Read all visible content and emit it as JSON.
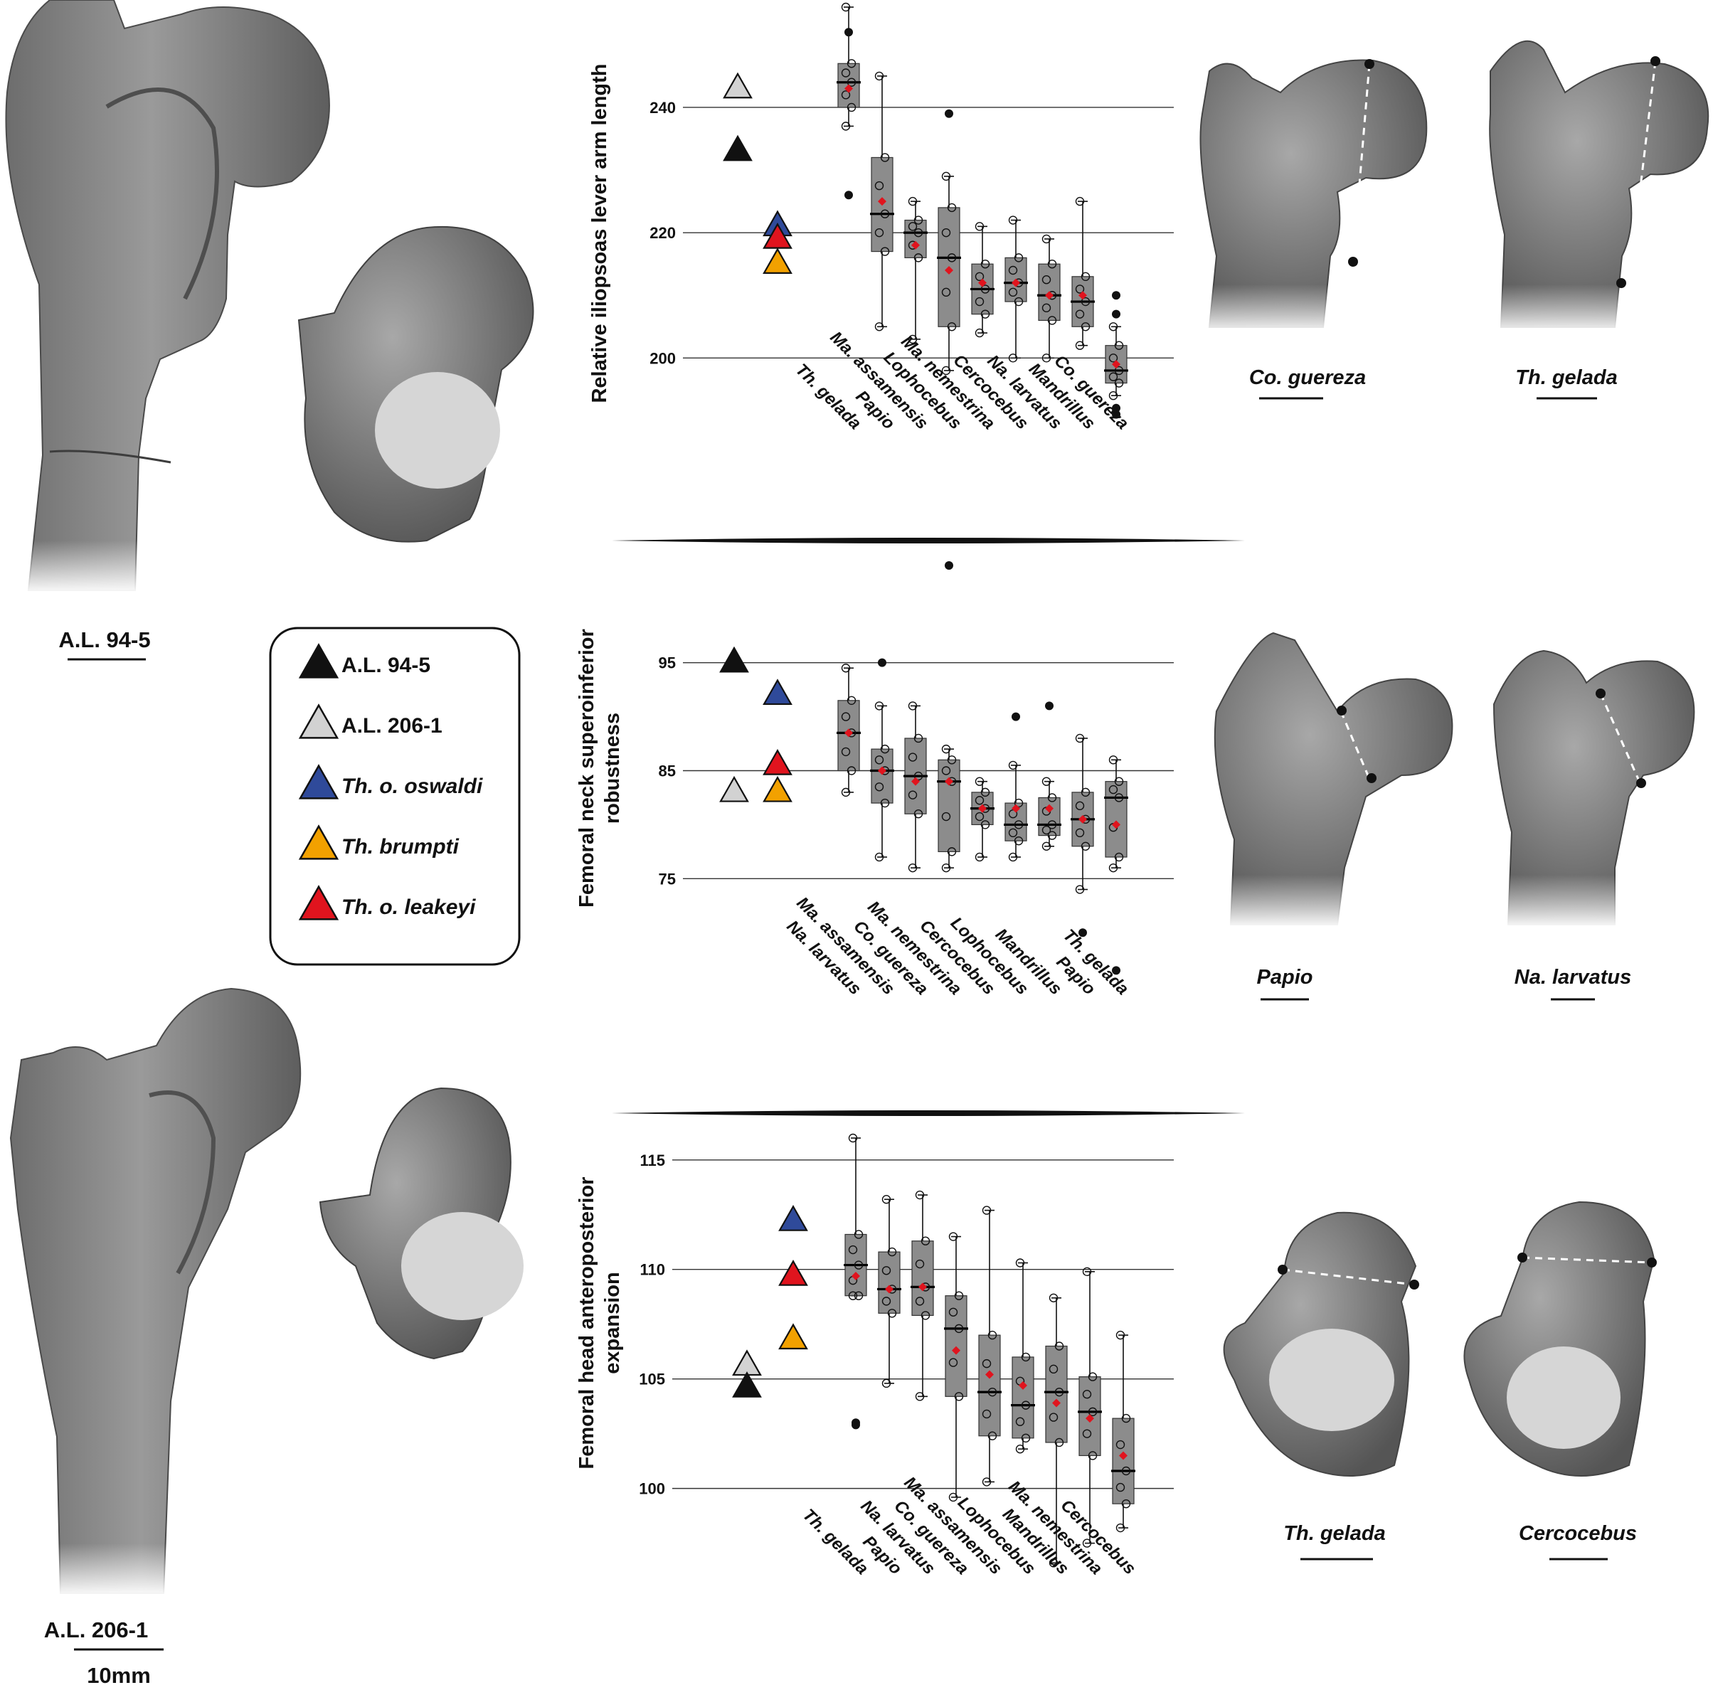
{
  "colors": {
    "al945": "#111111",
    "al2061": "#d2d2d2",
    "oswaldi": "#2f4a9a",
    "brumpti": "#f2a100",
    "leakeyi": "#e0141e",
    "box": "#8c8c8c",
    "mean": "#e0141e",
    "bone": "#8a8a8a",
    "bone_dark": "#5a5a5a",
    "section": "#d6d6d6"
  },
  "specimens": {
    "al945": "A.L. 94-5",
    "al2061": "A.L. 206-1",
    "scale": "10mm"
  },
  "legend": [
    {
      "label": "A.L. 94-5",
      "color": "#111111",
      "italic": false
    },
    {
      "label": "A.L. 206-1",
      "color": "#d2d2d2",
      "italic": false
    },
    {
      "label": "Th. o. oswaldi",
      "color": "#2f4a9a",
      "italic": true
    },
    {
      "label": "Th. brumpti",
      "color": "#f2a100",
      "italic": true
    },
    {
      "label": "Th. o. leakeyi",
      "color": "#e0141e",
      "italic": true
    }
  ],
  "bone_labels": {
    "p1_left": "Co. guereza",
    "p1_right": "Th. gelada",
    "p2_left": "Papio",
    "p2_right": "Na. larvatus",
    "p3_left": "Th. gelada",
    "p3_right": "Cercocebus"
  },
  "chart_data": [
    {
      "type": "box",
      "ylabel": "Relative iliopsoas lever arm length",
      "ylim": [
        193,
        256
      ],
      "yticks": [
        200,
        220,
        240
      ],
      "grid": true,
      "categories": [
        "Th. gelada",
        "Papio",
        "Ma. assamensis",
        "Lophocebus",
        "Ma. nemestrina",
        "Cercocebus",
        "Na. larvatus",
        "Mandrillus",
        "Co. guereza"
      ],
      "boxes": [
        {
          "q1": 240,
          "median": 244,
          "q3": 247,
          "whisker_low": 237,
          "whisker_high": 256,
          "mean": 243,
          "outliers": [
            252,
            226
          ]
        },
        {
          "q1": 217,
          "median": 223,
          "q3": 232,
          "whisker_low": 205,
          "whisker_high": 245,
          "mean": 225,
          "outliers": []
        },
        {
          "q1": 216,
          "median": 220,
          "q3": 222,
          "whisker_low": 203,
          "whisker_high": 225,
          "mean": 218,
          "outliers": []
        },
        {
          "q1": 205,
          "median": 216,
          "q3": 224,
          "whisker_low": 198,
          "whisker_high": 229,
          "mean": 214,
          "outliers": [
            239
          ]
        },
        {
          "q1": 207,
          "median": 211,
          "q3": 215,
          "whisker_low": 204,
          "whisker_high": 221,
          "mean": 212,
          "outliers": []
        },
        {
          "q1": 209,
          "median": 212,
          "q3": 216,
          "whisker_low": 200,
          "whisker_high": 222,
          "mean": 212,
          "outliers": []
        },
        {
          "q1": 206,
          "median": 210,
          "q3": 215,
          "whisker_low": 200,
          "whisker_high": 219,
          "mean": 210,
          "outliers": []
        },
        {
          "q1": 205,
          "median": 209,
          "q3": 213,
          "whisker_low": 202,
          "whisker_high": 225,
          "mean": 210,
          "outliers": []
        },
        {
          "q1": 196,
          "median": 198,
          "q3": 202,
          "whisker_low": 194,
          "whisker_high": 205,
          "mean": 199,
          "outliers": [
            210,
            207,
            192,
            191
          ]
        }
      ],
      "fossils": [
        {
          "group": "A.L. 206-1",
          "value": 243,
          "col": 0
        },
        {
          "group": "A.L. 94-5",
          "value": 233,
          "col": 0
        },
        {
          "group": "Th. o. oswaldi",
          "value": 221,
          "col": 1
        },
        {
          "group": "Th. o. leakeyi",
          "value": 219,
          "col": 1
        },
        {
          "group": "Th. brumpti",
          "value": 215,
          "col": 1
        }
      ]
    },
    {
      "type": "box",
      "ylabel": [
        "Femoral neck superoinferior",
        "robustness"
      ],
      "ylim": [
        66,
        104
      ],
      "yticks": [
        75,
        85,
        95
      ],
      "grid": true,
      "categories": [
        "Na. larvatus",
        "Ma. assamensis",
        "Co. guereza",
        "Ma. nemestrina",
        "Cercocebus",
        "Lophocebus",
        "Mandrillus",
        "Papio",
        "Th. gelada"
      ],
      "boxes": [
        {
          "q1": 85,
          "median": 88.5,
          "q3": 91.5,
          "whisker_low": 83,
          "whisker_high": 94.5,
          "mean": 88.5,
          "outliers": []
        },
        {
          "q1": 82,
          "median": 85,
          "q3": 87,
          "whisker_low": 77,
          "whisker_high": 91,
          "mean": 85,
          "outliers": [
            95
          ]
        },
        {
          "q1": 81,
          "median": 84.5,
          "q3": 88,
          "whisker_low": 76,
          "whisker_high": 91,
          "mean": 84,
          "outliers": []
        },
        {
          "q1": 77.5,
          "median": 84,
          "q3": 86,
          "whisker_low": 76,
          "whisker_high": 87,
          "mean": 84,
          "outliers": [
            104
          ]
        },
        {
          "q1": 80,
          "median": 81.5,
          "q3": 83,
          "whisker_low": 77,
          "whisker_high": 84,
          "mean": 81.5,
          "outliers": []
        },
        {
          "q1": 78.5,
          "median": 80,
          "q3": 82,
          "whisker_low": 77,
          "whisker_high": 85.5,
          "mean": 81.5,
          "outliers": [
            90
          ]
        },
        {
          "q1": 79,
          "median": 80,
          "q3": 82.5,
          "whisker_low": 78,
          "whisker_high": 84,
          "mean": 81.5,
          "outliers": [
            91
          ]
        },
        {
          "q1": 78,
          "median": 80.5,
          "q3": 83,
          "whisker_low": 74,
          "whisker_high": 88,
          "mean": 80.5,
          "outliers": [
            70
          ]
        },
        {
          "q1": 77,
          "median": 82.5,
          "q3": 84,
          "whisker_low": 76,
          "whisker_high": 86,
          "mean": 80,
          "outliers": [
            66.5
          ]
        }
      ],
      "fossils": [
        {
          "group": "A.L. 94-5",
          "value": 95,
          "col": 0
        },
        {
          "group": "A.L. 206-1",
          "value": 83,
          "col": 0
        },
        {
          "group": "Th. o. oswaldi",
          "value": 92,
          "col": 1
        },
        {
          "group": "Th. o. leakeyi",
          "value": 85.5,
          "col": 1
        },
        {
          "group": "Th. brumpti",
          "value": 83,
          "col": 1
        }
      ]
    },
    {
      "type": "box",
      "ylabel": [
        "Femoral head anteroposterior",
        "expansion"
      ],
      "ylim": [
        97,
        116
      ],
      "yticks": [
        100,
        105,
        110,
        115
      ],
      "grid": true,
      "categories": [
        "Th. gelada",
        "Papio",
        "Na. larvatus",
        "Co. guereza",
        "Ma. assamensis",
        "Lophocebus",
        "Mandrillus",
        "Ma. nemestrina",
        "Cercocebus"
      ],
      "boxes": [
        {
          "q1": 108.8,
          "median": 110.2,
          "q3": 111.6,
          "whisker_low": 108.8,
          "whisker_high": 116,
          "mean": 109.7,
          "outliers": [
            103,
            102.9
          ]
        },
        {
          "q1": 108,
          "median": 109.1,
          "q3": 110.8,
          "whisker_low": 104.8,
          "whisker_high": 113.2,
          "mean": 109.1,
          "outliers": []
        },
        {
          "q1": 107.9,
          "median": 109.2,
          "q3": 111.3,
          "whisker_low": 104.2,
          "whisker_high": 113.4,
          "mean": 109.2,
          "outliers": []
        },
        {
          "q1": 104.2,
          "median": 107.3,
          "q3": 108.8,
          "whisker_low": 99.6,
          "whisker_high": 111.5,
          "mean": 106.3,
          "outliers": []
        },
        {
          "q1": 102.4,
          "median": 104.4,
          "q3": 107,
          "whisker_low": 100.3,
          "whisker_high": 112.7,
          "mean": 105.2,
          "outliers": []
        },
        {
          "q1": 102.3,
          "median": 103.8,
          "q3": 106,
          "whisker_low": 101.8,
          "whisker_high": 110.3,
          "mean": 104.7,
          "outliers": []
        },
        {
          "q1": 102.1,
          "median": 104.4,
          "q3": 106.5,
          "whisker_low": 96.6,
          "whisker_high": 108.7,
          "mean": 103.9,
          "outliers": []
        },
        {
          "q1": 101.5,
          "median": 103.5,
          "q3": 105.1,
          "whisker_low": 97.5,
          "whisker_high": 109.9,
          "mean": 103.2,
          "outliers": []
        },
        {
          "q1": 99.3,
          "median": 100.8,
          "q3": 103.2,
          "whisker_low": 98.2,
          "whisker_high": 107,
          "mean": 101.5,
          "outliers": []
        }
      ],
      "fossils": [
        {
          "group": "A.L. 206-1",
          "value": 105.6,
          "col": 0
        },
        {
          "group": "A.L. 94-5",
          "value": 104.6,
          "col": 0
        },
        {
          "group": "Th. o. oswaldi",
          "value": 112.2,
          "col": 1
        },
        {
          "group": "Th. o. leakeyi",
          "value": 109.7,
          "col": 1
        },
        {
          "group": "Th. brumpti",
          "value": 106.8,
          "col": 1
        }
      ]
    }
  ]
}
